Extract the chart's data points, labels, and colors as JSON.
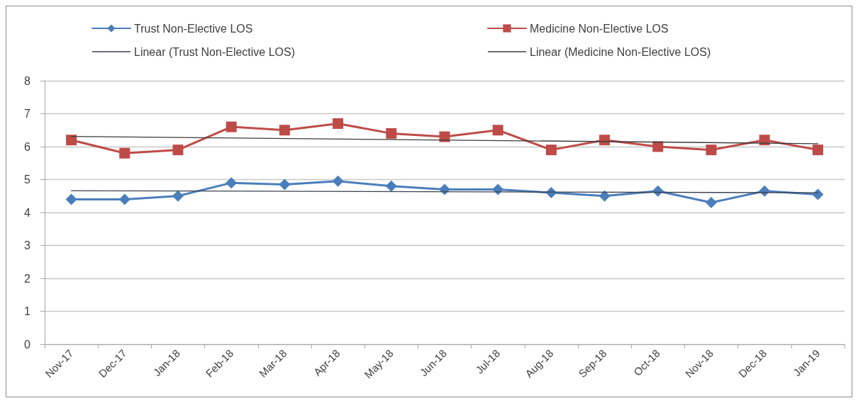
{
  "chart_data": {
    "type": "line",
    "categories": [
      "Nov-17",
      "Dec-17",
      "Jan-18",
      "Feb-18",
      "Mar-18",
      "Apr-18",
      "May-18",
      "Jun-18",
      "Jul-18",
      "Aug-18",
      "Sep-18",
      "Oct-18",
      "Nov-18",
      "Dec-18",
      "Jan-19"
    ],
    "series": [
      {
        "name": "Trust Non-Elective LOS",
        "color": "#4a7ebb",
        "marker": "diamond",
        "values": [
          4.4,
          4.4,
          4.5,
          4.9,
          4.85,
          4.95,
          4.8,
          4.7,
          4.7,
          4.6,
          4.5,
          4.65,
          4.3,
          4.65,
          4.55
        ]
      },
      {
        "name": "Medicine Non-Elective LOS",
        "color": "#be4b48",
        "marker": "square",
        "values": [
          6.2,
          5.8,
          5.9,
          6.6,
          6.5,
          6.7,
          6.4,
          6.3,
          6.5,
          5.9,
          6.2,
          6.0,
          5.9,
          6.2,
          5.9
        ]
      },
      {
        "name": "Linear (Trust Non-Elective LOS)",
        "color": "#3c4252",
        "marker": "none",
        "x": [
          "Nov-17",
          "Jan-19"
        ],
        "values": [
          4.66,
          4.6
        ]
      },
      {
        "name": "Linear (Medicine Non-Elective LOS)",
        "color": "#3c3c3c",
        "marker": "none",
        "x": [
          "Nov-17",
          "Jan-19"
        ],
        "values": [
          6.31,
          6.09
        ]
      }
    ],
    "ylim": [
      0,
      8
    ],
    "yticks": [
      0,
      1,
      2,
      3,
      4,
      5,
      6,
      7,
      8
    ],
    "grid": "y",
    "legend": "top",
    "line_style": "solid"
  }
}
